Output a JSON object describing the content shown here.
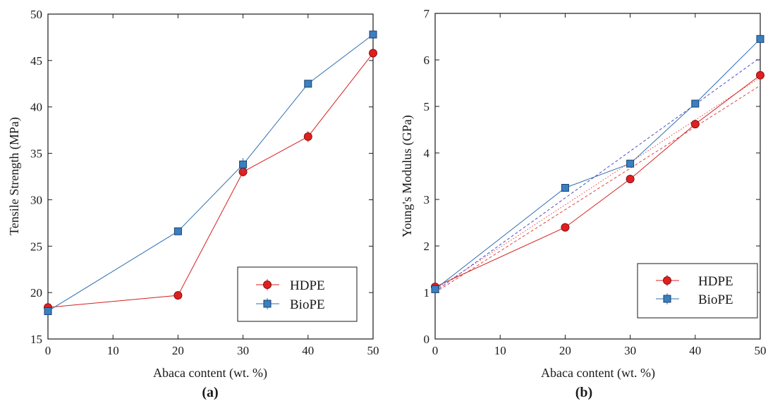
{
  "chart_data": [
    {
      "type": "line",
      "caption": "(a)",
      "xlabel": "Abaca content (wt. %)",
      "ylabel": "Tensile Strength (MPa)",
      "xlim": [
        0,
        50
      ],
      "ylim": [
        15,
        50
      ],
      "xticks": [
        0,
        10,
        20,
        30,
        40,
        50
      ],
      "yticks": [
        15,
        20,
        25,
        30,
        35,
        40,
        45,
        50
      ],
      "grid": false,
      "legend_position": "bottom-right",
      "series": [
        {
          "name": "HDPE",
          "color": "#d42020",
          "marker": "circle",
          "x": [
            0,
            20,
            30,
            40,
            50
          ],
          "y": [
            18.4,
            19.7,
            33.0,
            36.8,
            45.8
          ],
          "err": [
            0.3,
            0.3,
            0.5,
            0.6,
            0.4
          ]
        },
        {
          "name": "BioPE",
          "color": "#2f6fb0",
          "marker": "square",
          "x": [
            0,
            20,
            30,
            40,
            50
          ],
          "y": [
            18.0,
            26.6,
            33.8,
            42.5,
            47.8
          ],
          "err": [
            0.3,
            0.3,
            0.7,
            0.3,
            0.3
          ]
        }
      ]
    },
    {
      "type": "line",
      "caption": "(b)",
      "xlabel": "Abaca content (wt. %)",
      "ylabel": "Young's Modulus (GPa)",
      "xlim": [
        0,
        50
      ],
      "ylim": [
        0,
        7
      ],
      "xticks": [
        0,
        10,
        20,
        30,
        40,
        50
      ],
      "yticks": [
        0,
        1,
        2,
        3,
        4,
        5,
        6,
        7
      ],
      "grid": false,
      "legend_position": "bottom-right",
      "series": [
        {
          "name": "HDPE",
          "color": "#d42020",
          "marker": "circle",
          "x": [
            0,
            20,
            30,
            40,
            50
          ],
          "y": [
            1.12,
            2.4,
            3.44,
            4.62,
            5.67
          ],
          "err": [
            0.05,
            0.05,
            0.05,
            0.08,
            0.1
          ]
        },
        {
          "name": "BioPE",
          "color": "#2f6fb0",
          "marker": "square",
          "x": [
            0,
            20,
            30,
            40,
            50
          ],
          "y": [
            1.07,
            3.25,
            3.77,
            5.06,
            6.45
          ],
          "err": [
            0.05,
            0.05,
            0.05,
            0.05,
            0.08
          ]
        }
      ],
      "trend_lines": [
        {
          "series": "HDPE",
          "color": "#e03030",
          "style": "dashed",
          "x": [
            0,
            50
          ],
          "y": [
            1.0,
            5.45
          ]
        },
        {
          "series": "BioPE",
          "color": "#3a3ad0",
          "style": "dashed",
          "x": [
            0,
            50
          ],
          "y": [
            1.02,
            6.05
          ]
        },
        {
          "series": "HDPE",
          "color": "#e03030",
          "style": "dotted",
          "x": [
            0,
            50
          ],
          "y": [
            1.06,
            5.62
          ]
        }
      ]
    }
  ]
}
